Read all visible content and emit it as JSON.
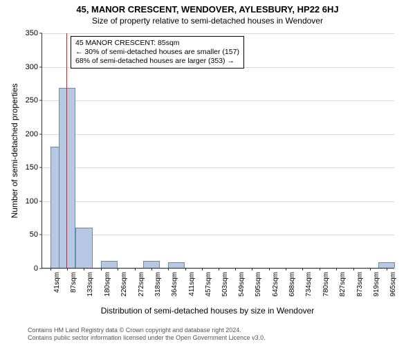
{
  "title_main": "45, MANOR CRESCENT, WENDOVER, AYLESBURY, HP22 6HJ",
  "title_sub": "Size of property relative to semi-detached houses in Wendover",
  "ylabel": "Number of semi-detached properties",
  "xlabel": "Distribution of semi-detached houses by size in Wendover",
  "footer_line1": "Contains HM Land Registry data © Crown copyright and database right 2024.",
  "footer_line2": "Contains public sector information licensed under the Open Government Licence v3.0.",
  "chart": {
    "type": "histogram",
    "x_min": 18,
    "x_max": 988,
    "y_min": 0,
    "y_max": 350,
    "yticks": [
      0,
      50,
      100,
      150,
      200,
      250,
      300,
      350
    ],
    "xticks": [
      41,
      87,
      133,
      180,
      226,
      272,
      318,
      364,
      411,
      457,
      503,
      549,
      595,
      642,
      688,
      734,
      780,
      827,
      873,
      919,
      965
    ],
    "xtick_unit": "sqm",
    "grid_color": "#d9d9d9",
    "bar_color": "#b7c9e2",
    "bar_border": "#6b87ad",
    "marker_color": "#d42020",
    "marker_x": 85,
    "bin_width": 46,
    "bars": [
      {
        "x0": 18,
        "count": 0
      },
      {
        "x0": 41,
        "count": 180
      },
      {
        "x0": 64,
        "count": 268
      },
      {
        "x0": 87,
        "count": 0
      },
      {
        "x0": 110,
        "count": 60
      },
      {
        "x0": 133,
        "count": 0
      },
      {
        "x0": 156,
        "count": 0
      },
      {
        "x0": 180,
        "count": 10
      },
      {
        "x0": 203,
        "count": 0
      },
      {
        "x0": 226,
        "count": 0
      },
      {
        "x0": 249,
        "count": 0
      },
      {
        "x0": 272,
        "count": 0
      },
      {
        "x0": 295,
        "count": 10
      },
      {
        "x0": 318,
        "count": 0
      },
      {
        "x0": 341,
        "count": 0
      },
      {
        "x0": 364,
        "count": 8
      },
      {
        "x0": 919,
        "count": 0
      },
      {
        "x0": 942,
        "count": 8
      }
    ]
  },
  "annotation": {
    "line1": "45 MANOR CRESCENT: 85sqm",
    "line2": "← 30% of semi-detached houses are smaller (157)",
    "line3": "68% of semi-detached houses are larger (353) →"
  }
}
